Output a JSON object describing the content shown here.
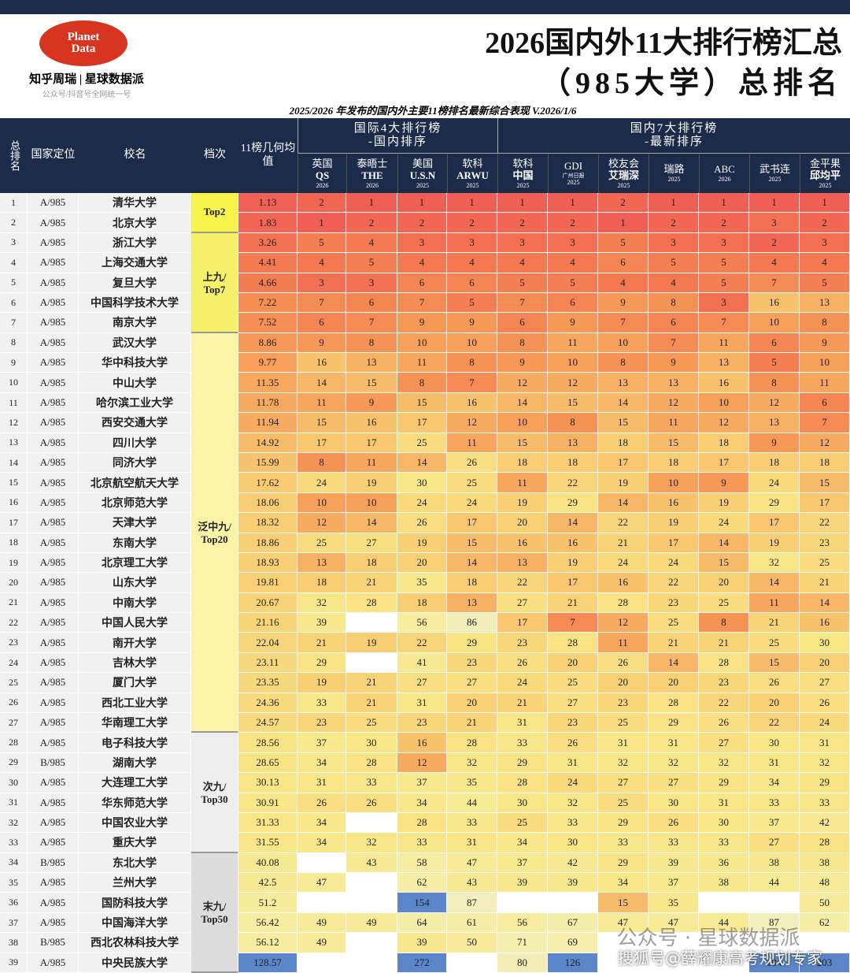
{
  "header": {
    "logo": [
      "Planet",
      "Data"
    ],
    "brand": "知乎周瑞 | 星球数据派",
    "slogan": "公众号/抖音号全网统一号",
    "title": [
      "2026国内外11大排行榜汇总",
      "（985大学）总排名"
    ],
    "subtitle": "2025/2026 年发布的国内外主要11榜排名最新综合表现 V.2026/1/6"
  },
  "table": {
    "fixed_columns": [
      "总排名",
      "国家定位",
      "校名",
      "档次",
      "11榜几何均值"
    ],
    "groups": [
      [
        "国际4大排行榜",
        "-国内排序"
      ],
      [
        "国内7大排行榜",
        "-最新排序"
      ]
    ],
    "rank_columns": [
      {
        "name": "英国",
        "sub": "QS",
        "year": "2026"
      },
      {
        "name": "泰晤士",
        "sub": "THE",
        "year": "2026"
      },
      {
        "name": "美国",
        "sub": "U.S.N",
        "year": "2025"
      },
      {
        "name": "软科",
        "sub": "ARWU",
        "year": "2025"
      },
      {
        "name": "软科",
        "sub": "中国",
        "year": "2025"
      },
      {
        "name": "GDI",
        "sub": "广州日报",
        "year": "2025"
      },
      {
        "name": "校友会",
        "sub": "艾瑞深",
        "year": "2025"
      },
      {
        "name": "瑞路",
        "year": "2025"
      },
      {
        "name": "ABC",
        "year": "2026"
      },
      {
        "name": "武书连",
        "year": "2025"
      },
      {
        "name": "金平果",
        "sub": "邱均平",
        "year": "2025"
      }
    ],
    "tiers": [
      {
        "label": [
          "Top2"
        ],
        "rows": [
          1,
          2
        ]
      },
      {
        "label": [
          "上九/",
          "Top7"
        ],
        "rows": [
          3,
          7
        ]
      },
      {
        "label": [
          "泛中九/",
          "Top20"
        ],
        "rows": [
          8,
          27
        ]
      },
      {
        "label": [
          "次九/",
          "Top30"
        ],
        "rows": [
          28,
          33
        ]
      },
      {
        "label": [
          "末九/",
          "Top50"
        ],
        "rows": [
          34,
          39
        ]
      }
    ],
    "rows": [
      [
        1,
        "A/985",
        "清华大学",
        1.13,
        2,
        1,
        1,
        1,
        1,
        1,
        2,
        1,
        1,
        1,
        1
      ],
      [
        2,
        "A/985",
        "北京大学",
        1.83,
        1,
        2,
        2,
        2,
        2,
        2,
        1,
        2,
        2,
        3,
        2
      ],
      [
        3,
        "A/985",
        "浙江大学",
        3.26,
        5,
        4,
        3,
        3,
        3,
        3,
        5,
        3,
        3,
        2,
        3
      ],
      [
        4,
        "A/985",
        "上海交通大学",
        4.41,
        4,
        5,
        4,
        4,
        4,
        4,
        6,
        5,
        5,
        4,
        4
      ],
      [
        5,
        "A/985",
        "复旦大学",
        4.66,
        3,
        3,
        6,
        6,
        5,
        5,
        4,
        4,
        5,
        7,
        5
      ],
      [
        6,
        "A/985",
        "中国科学技术大学",
        7.22,
        7,
        6,
        7,
        5,
        7,
        6,
        9,
        8,
        3,
        16,
        13
      ],
      [
        7,
        "A/985",
        "南京大学",
        7.52,
        6,
        7,
        9,
        9,
        6,
        9,
        7,
        6,
        7,
        10,
        8
      ],
      [
        8,
        "A/985",
        "武汉大学",
        8.86,
        9,
        8,
        10,
        10,
        8,
        11,
        10,
        7,
        11,
        6,
        9
      ],
      [
        9,
        "A/985",
        "华中科技大学",
        9.77,
        16,
        13,
        11,
        8,
        9,
        10,
        8,
        9,
        13,
        5,
        10
      ],
      [
        10,
        "A/985",
        "中山大学",
        11.35,
        14,
        15,
        8,
        7,
        12,
        12,
        13,
        13,
        16,
        8,
        11
      ],
      [
        11,
        "A/985",
        "哈尔滨工业大学",
        11.78,
        11,
        9,
        15,
        16,
        14,
        15,
        14,
        12,
        10,
        12,
        6
      ],
      [
        12,
        "A/985",
        "西安交通大学",
        11.94,
        15,
        16,
        17,
        12,
        10,
        8,
        15,
        11,
        12,
        13,
        7
      ],
      [
        13,
        "A/985",
        "四川大学",
        14.92,
        17,
        17,
        25,
        11,
        15,
        13,
        18,
        15,
        18,
        9,
        12
      ],
      [
        14,
        "A/985",
        "同济大学",
        15.99,
        8,
        11,
        14,
        26,
        18,
        18,
        17,
        18,
        17,
        18,
        18
      ],
      [
        15,
        "A/985",
        "北京航空航天大学",
        17.62,
        24,
        19,
        30,
        25,
        11,
        22,
        19,
        10,
        9,
        24,
        15
      ],
      [
        16,
        "A/985",
        "北京师范大学",
        18.06,
        10,
        10,
        24,
        24,
        19,
        29,
        14,
        16,
        19,
        29,
        17
      ],
      [
        17,
        "A/985",
        "天津大学",
        18.32,
        12,
        14,
        26,
        17,
        20,
        14,
        22,
        19,
        24,
        17,
        22
      ],
      [
        18,
        "A/985",
        "东南大学",
        18.86,
        25,
        27,
        19,
        15,
        16,
        16,
        21,
        17,
        14,
        19,
        23
      ],
      [
        19,
        "A/985",
        "北京理工大学",
        18.93,
        13,
        18,
        20,
        14,
        13,
        19,
        24,
        24,
        15,
        32,
        25
      ],
      [
        20,
        "A/985",
        "山东大学",
        19.81,
        18,
        21,
        35,
        18,
        22,
        17,
        16,
        22,
        20,
        14,
        21
      ],
      [
        21,
        "A/985",
        "中南大学",
        20.67,
        32,
        28,
        18,
        13,
        27,
        21,
        28,
        23,
        25,
        11,
        14
      ],
      [
        22,
        "A/985",
        "中国人民大学",
        21.16,
        39,
        null,
        56,
        86,
        17,
        7,
        12,
        25,
        8,
        21,
        16
      ],
      [
        23,
        "A/985",
        "南开大学",
        22.04,
        21,
        19,
        22,
        29,
        23,
        28,
        11,
        21,
        21,
        25,
        30
      ],
      [
        24,
        "A/985",
        "吉林大学",
        23.11,
        29,
        null,
        41,
        23,
        26,
        20,
        26,
        14,
        28,
        15,
        20
      ],
      [
        25,
        "A/985",
        "厦门大学",
        23.35,
        19,
        21,
        27,
        27,
        24,
        25,
        20,
        20,
        23,
        26,
        27
      ],
      [
        26,
        "A/985",
        "西北工业大学",
        24.36,
        33,
        21,
        31,
        20,
        21,
        27,
        23,
        28,
        22,
        20,
        26
      ],
      [
        27,
        "A/985",
        "华南理工大学",
        24.57,
        23,
        25,
        23,
        21,
        31,
        23,
        25,
        29,
        26,
        22,
        24
      ],
      [
        28,
        "A/985",
        "电子科技大学",
        28.56,
        37,
        30,
        16,
        28,
        33,
        26,
        31,
        31,
        27,
        30,
        31
      ],
      [
        29,
        "B/985",
        "湖南大学",
        28.65,
        34,
        28,
        12,
        32,
        29,
        31,
        32,
        32,
        32,
        31,
        32
      ],
      [
        30,
        "A/985",
        "大连理工大学",
        30.13,
        31,
        33,
        37,
        35,
        28,
        24,
        27,
        27,
        29,
        34,
        29
      ],
      [
        31,
        "A/985",
        "华东师范大学",
        30.91,
        26,
        26,
        34,
        44,
        30,
        32,
        25,
        30,
        31,
        33,
        33
      ],
      [
        32,
        "A/985",
        "中国农业大学",
        31.33,
        34,
        null,
        28,
        33,
        25,
        33,
        29,
        26,
        30,
        37,
        42
      ],
      [
        33,
        "A/985",
        "重庆大学",
        31.55,
        34,
        32,
        33,
        31,
        34,
        30,
        33,
        33,
        33,
        27,
        28
      ],
      [
        34,
        "B/985",
        "东北大学",
        40.08,
        null,
        43,
        58,
        47,
        37,
        42,
        29,
        39,
        36,
        38,
        38
      ],
      [
        35,
        "A/985",
        "兰州大学",
        42.5,
        47,
        null,
        62,
        43,
        39,
        39,
        34,
        37,
        38,
        44,
        48
      ],
      [
        36,
        "A/985",
        "国防科技大学",
        51.2,
        null,
        null,
        154,
        87,
        null,
        null,
        15,
        35,
        null,
        null,
        50
      ],
      [
        37,
        "A/985",
        "中国海洋大学",
        56.42,
        49,
        49,
        64,
        61,
        56,
        67,
        47,
        47,
        44,
        87,
        62
      ],
      [
        38,
        "B/985",
        "西北农林科技大学",
        56.12,
        49,
        null,
        39,
        50,
        71,
        69,
        null,
        null,
        null,
        null,
        null
      ],
      [
        39,
        "A/985",
        "中央民族大学",
        128.57,
        null,
        null,
        272,
        null,
        80,
        126,
        null,
        null,
        null,
        184,
        203
      ]
    ]
  },
  "watermark": [
    "公众号 · 星球数据派",
    "搜狐号@薛耀康高考规划专家"
  ]
}
